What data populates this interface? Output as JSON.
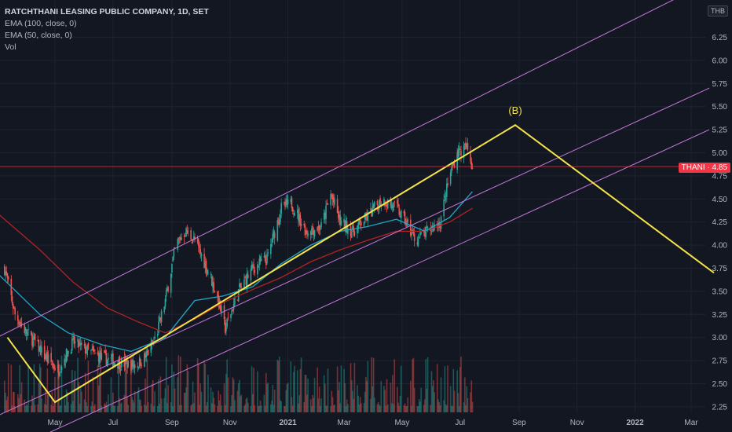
{
  "legend": {
    "title": "RATCHTHANI LEASING PUBLIC COMPANY, 1D, SET",
    "ind1": "EMA (100, close, 0)",
    "ind2": "EMA (50, close, 0)",
    "ind3": "Vol"
  },
  "price_scale": {
    "currency": "THB"
  },
  "last_price": {
    "label": "THANI · 4.85",
    "value": 4.85
  },
  "colors": {
    "background": "#131722",
    "up": "#26a69a",
    "down": "#ef5350",
    "ema50": "#22a6c7",
    "ema100": "#b22222",
    "wave": "#f5e447",
    "channel": "#c678dd",
    "last_price_line": "#f23645"
  },
  "chart_data": {
    "type": "candlestick",
    "title": "RATCHTHANI LEASING PUBLIC COMPANY, 1D, SET",
    "xlabel": "",
    "ylabel": "",
    "ylim": [
      2.2,
      6.5
    ],
    "y_ticks": [
      "6.25",
      "6.00",
      "5.75",
      "5.50",
      "5.25",
      "5.00",
      "4.75",
      "4.50",
      "4.25",
      "4.00",
      "3.75",
      "3.50",
      "3.25",
      "3.00",
      "2.75",
      "2.50",
      "2.25"
    ],
    "x_ticks": [
      {
        "label": "May",
        "date": "2020-05-01"
      },
      {
        "label": "Jul",
        "date": "2020-07-01"
      },
      {
        "label": "Sep",
        "date": "2020-09-01"
      },
      {
        "label": "Nov",
        "date": "2020-11-01"
      },
      {
        "label": "2021",
        "date": "2021-01-01"
      },
      {
        "label": "Mar",
        "date": "2021-03-01"
      },
      {
        "label": "May",
        "date": "2021-05-01"
      },
      {
        "label": "Jul",
        "date": "2021-07-01"
      },
      {
        "label": "Sep",
        "date": "2021-09-01"
      },
      {
        "label": "Nov",
        "date": "2021-11-01"
      },
      {
        "label": "2022",
        "date": "2022-01-01"
      },
      {
        "label": "Mar",
        "date": "2022-03-01"
      }
    ],
    "price_path": [
      [
        "2020-03-09",
        3.75
      ],
      [
        "2020-03-20",
        3.25
      ],
      [
        "2020-04-01",
        3.05
      ],
      [
        "2020-04-10",
        2.95
      ],
      [
        "2020-04-20",
        2.8
      ],
      [
        "2020-05-04",
        2.65
      ],
      [
        "2020-05-20",
        2.95
      ],
      [
        "2020-06-05",
        2.85
      ],
      [
        "2020-06-20",
        2.78
      ],
      [
        "2020-07-10",
        2.72
      ],
      [
        "2020-07-25",
        2.7
      ],
      [
        "2020-08-05",
        2.8
      ],
      [
        "2020-08-15",
        3.0
      ],
      [
        "2020-08-25",
        3.4
      ],
      [
        "2020-09-05",
        4.0
      ],
      [
        "2020-09-15",
        4.15
      ],
      [
        "2020-09-25",
        4.05
      ],
      [
        "2020-10-10",
        3.7
      ],
      [
        "2020-10-20",
        3.4
      ],
      [
        "2020-10-27",
        3.1
      ],
      [
        "2020-11-10",
        3.5
      ],
      [
        "2020-11-25",
        3.75
      ],
      [
        "2020-12-10",
        3.85
      ],
      [
        "2020-12-25",
        4.4
      ],
      [
        "2021-01-05",
        4.45
      ],
      [
        "2021-01-20",
        4.15
      ],
      [
        "2021-02-05",
        4.2
      ],
      [
        "2021-02-15",
        4.55
      ],
      [
        "2021-02-25",
        4.25
      ],
      [
        "2021-03-10",
        4.15
      ],
      [
        "2021-03-25",
        4.3
      ],
      [
        "2021-04-10",
        4.5
      ],
      [
        "2021-04-25",
        4.4
      ],
      [
        "2021-05-05",
        4.25
      ],
      [
        "2021-05-15",
        4.05
      ],
      [
        "2021-05-28",
        4.15
      ],
      [
        "2021-06-10",
        4.25
      ],
      [
        "2021-06-20",
        4.75
      ],
      [
        "2021-06-28",
        5.0
      ],
      [
        "2021-07-08",
        5.05
      ],
      [
        "2021-07-14",
        4.85
      ]
    ],
    "series": [
      {
        "name": "EMA (50, close, 0)",
        "values": [
          [
            "2020-03-01",
            3.7
          ],
          [
            "2020-04-15",
            3.25
          ],
          [
            "2020-05-15",
            3.05
          ],
          [
            "2020-06-20",
            2.92
          ],
          [
            "2020-07-20",
            2.85
          ],
          [
            "2020-08-25",
            3.0
          ],
          [
            "2020-09-25",
            3.4
          ],
          [
            "2020-10-25",
            3.45
          ],
          [
            "2020-11-25",
            3.55
          ],
          [
            "2020-12-25",
            3.8
          ],
          [
            "2021-01-25",
            4.0
          ],
          [
            "2021-02-25",
            4.15
          ],
          [
            "2021-03-25",
            4.2
          ],
          [
            "2021-04-25",
            4.28
          ],
          [
            "2021-05-25",
            4.15
          ],
          [
            "2021-06-20",
            4.3
          ],
          [
            "2021-07-14",
            4.58
          ]
        ]
      },
      {
        "name": "EMA (100, close, 0)",
        "values": [
          [
            "2020-03-01",
            4.35
          ],
          [
            "2020-04-15",
            3.95
          ],
          [
            "2020-05-20",
            3.6
          ],
          [
            "2020-06-25",
            3.32
          ],
          [
            "2020-07-25",
            3.18
          ],
          [
            "2020-08-25",
            3.05
          ],
          [
            "2020-09-25",
            3.2
          ],
          [
            "2020-10-25",
            3.38
          ],
          [
            "2020-11-25",
            3.52
          ],
          [
            "2020-12-25",
            3.65
          ],
          [
            "2021-01-25",
            3.82
          ],
          [
            "2021-02-25",
            3.95
          ],
          [
            "2021-03-25",
            4.05
          ],
          [
            "2021-04-25",
            4.15
          ],
          [
            "2021-05-25",
            4.15
          ],
          [
            "2021-06-20",
            4.25
          ],
          [
            "2021-07-14",
            4.4
          ]
        ]
      }
    ],
    "annotations": [
      {
        "type": "wave",
        "label": "(B)",
        "points": [
          [
            "2020-03-12",
            3.0
          ],
          [
            "2020-05-01",
            2.3
          ],
          [
            "2021-08-28",
            5.3
          ],
          [
            "2022-03-25",
            3.7
          ]
        ]
      },
      {
        "type": "channel_upper",
        "points": [
          [
            "2020-03-01",
            3.0
          ],
          [
            "2022-03-20",
            6.85
          ]
        ]
      },
      {
        "type": "channel_mid",
        "points": [
          [
            "2020-03-01",
            2.15
          ],
          [
            "2022-03-20",
            5.7
          ]
        ]
      },
      {
        "type": "channel_lower",
        "points": [
          [
            "2020-04-10",
            1.9
          ],
          [
            "2022-03-20",
            5.25
          ]
        ]
      }
    ],
    "volume": {
      "max_height_fraction": 0.18
    }
  }
}
